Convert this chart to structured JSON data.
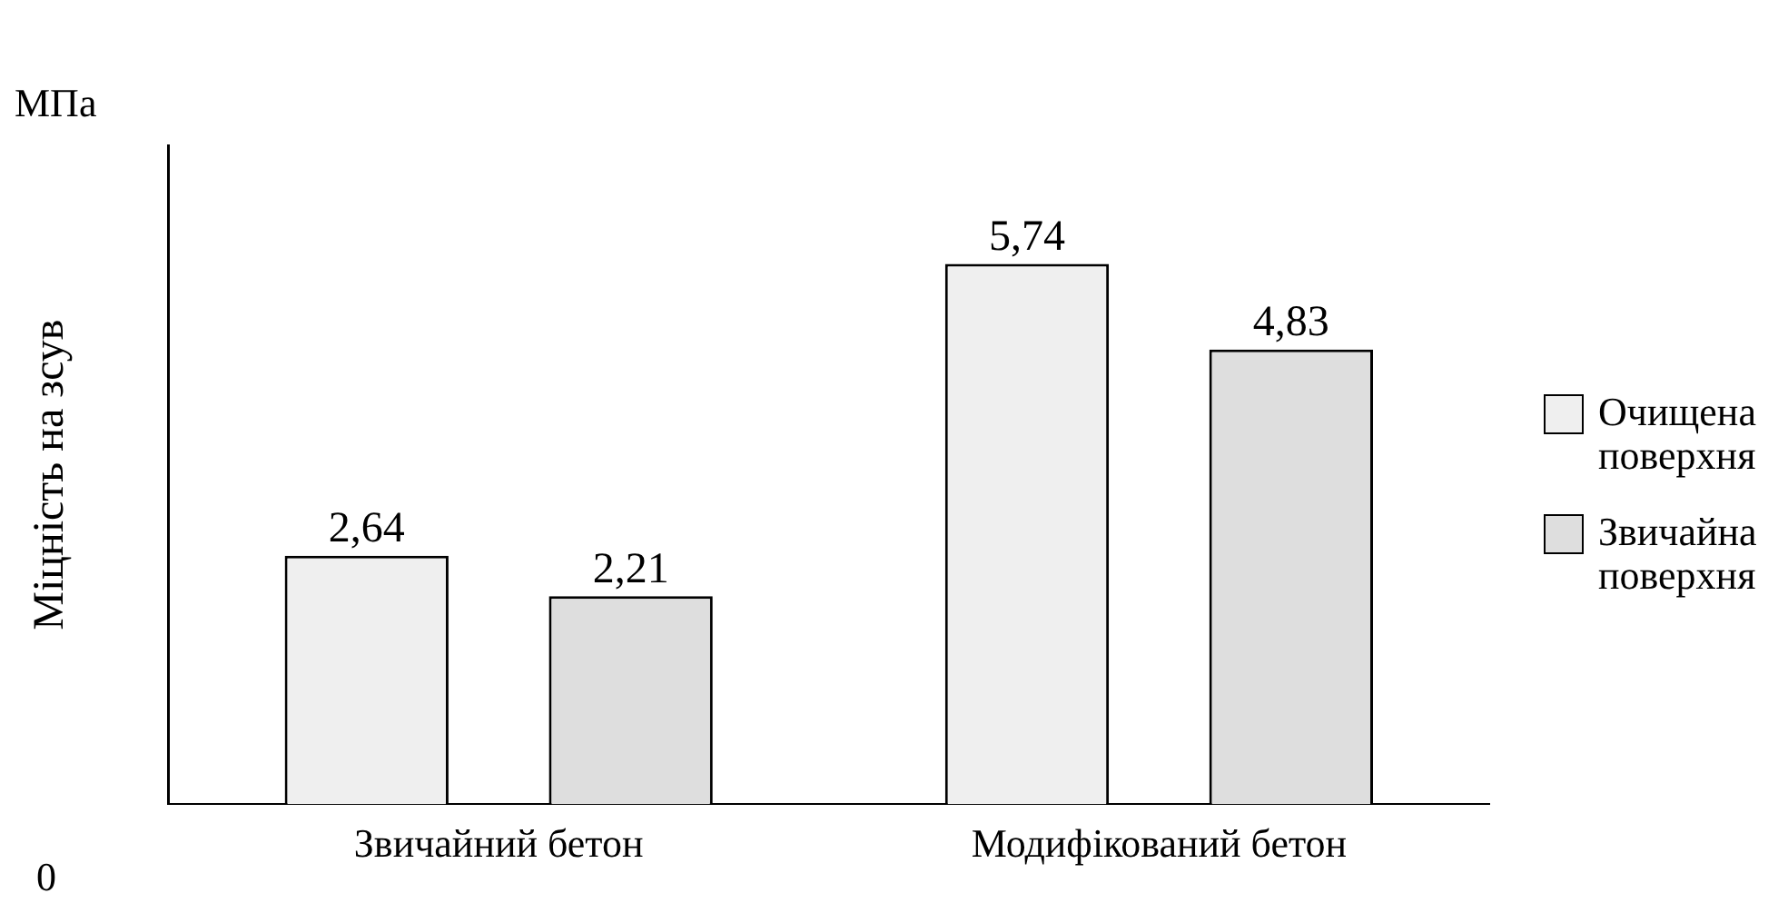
{
  "chart_data": {
    "type": "bar",
    "categories": [
      "Звичайний бетон",
      "Модифікований бетон"
    ],
    "series": [
      {
        "name": "Очищена поверхня",
        "color": "#efefef",
        "values": [
          2.64,
          5.74
        ],
        "value_labels": [
          "2,64",
          "5,74"
        ]
      },
      {
        "name": "Звичайна поверхня",
        "color": "#dedede",
        "values": [
          2.21,
          4.83
        ],
        "value_labels": [
          "2,21",
          "4,83"
        ]
      }
    ],
    "ylabel": "Міцність на зсув",
    "annotations": [
      "МПа",
      "0"
    ],
    "legend": "right"
  }
}
